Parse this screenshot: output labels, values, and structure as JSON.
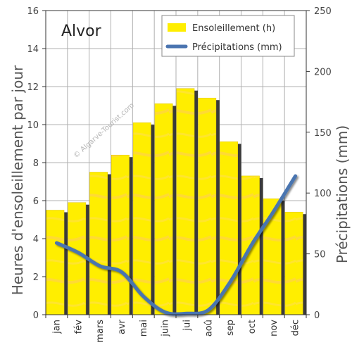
{
  "colors": {
    "bar_fill": "#ffee00",
    "bar_highlight": "#ffd24a",
    "bar_shadow": "#3a3a3a",
    "line": "#4a74b0",
    "grid": "#b0b0b0",
    "plot_background": "#ffffff"
  },
  "chart_data": {
    "type": "bar",
    "title": "Alvor",
    "categories": [
      "jan",
      "fév",
      "mars",
      "avr",
      "mai",
      "juin",
      "jui",
      "aoû",
      "sep",
      "oct",
      "nov",
      "déc"
    ],
    "series": [
      {
        "name": "Ensoleillement (h)",
        "type": "bar",
        "axis": "left",
        "values": [
          5.5,
          5.9,
          7.5,
          8.4,
          10.1,
          11.1,
          11.9,
          11.4,
          9.1,
          7.3,
          6.1,
          5.4
        ]
      },
      {
        "name": "Précipitations (mm)",
        "type": "line",
        "axis": "right",
        "values": [
          59,
          51,
          40,
          35,
          15,
          2,
          1,
          4,
          27,
          58,
          85,
          114
        ]
      }
    ],
    "ylabel": "Heures d'ensoleillement par jour",
    "y2label": "Précipitations (mm)",
    "ylim": [
      0,
      16
    ],
    "y2lim": [
      0,
      250
    ],
    "yticks": [
      0,
      2,
      4,
      6,
      8,
      10,
      12,
      14,
      16
    ],
    "y2ticks": [
      0,
      50,
      100,
      150,
      200,
      250
    ],
    "grid": true,
    "legend_position": "top-right",
    "watermark": "© Algarve-Tourist.com"
  }
}
